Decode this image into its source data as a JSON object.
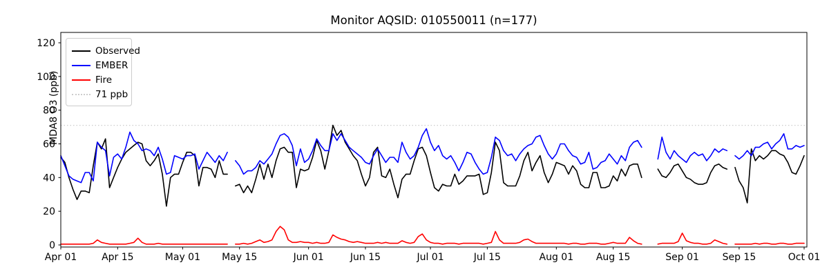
{
  "title": "Monitor AQSID: 010550011 (n=177)",
  "chart_data": {
    "type": "line",
    "title": "Monitor AQSID: 010550011 (n=177)",
    "xlabel": "",
    "ylabel": "MDA8 O3 (ppb)",
    "background": "#ffffff",
    "axis_color": "#000000",
    "grid": false,
    "legend_position": "upper-left",
    "ylim": [
      -2,
      126
    ],
    "yticks": [
      0,
      20,
      40,
      60,
      80,
      100,
      120
    ],
    "xmax": 183,
    "x_unit": "days since Apr 01",
    "xticks": [
      {
        "pos": 0,
        "label": "Apr 01"
      },
      {
        "pos": 14,
        "label": "Apr 15"
      },
      {
        "pos": 30,
        "label": "May 01"
      },
      {
        "pos": 44,
        "label": "May 15"
      },
      {
        "pos": 61,
        "label": "Jun 01"
      },
      {
        "pos": 75,
        "label": "Jun 15"
      },
      {
        "pos": 91,
        "label": "Jul 01"
      },
      {
        "pos": 105,
        "label": "Jul 15"
      },
      {
        "pos": 122,
        "label": "Aug 01"
      },
      {
        "pos": 136,
        "label": "Aug 15"
      },
      {
        "pos": 153,
        "label": "Sep 01"
      },
      {
        "pos": 167,
        "label": "Sep 15"
      },
      {
        "pos": 183,
        "label": "Oct 01"
      }
    ],
    "threshold": {
      "value": 71,
      "label": "71 ppb",
      "color": "#cccccc",
      "style": "dotted"
    },
    "series": [
      {
        "name": "Observed",
        "color": "#000000",
        "values": [
          52,
          49,
          40,
          33,
          27,
          32,
          32,
          31,
          47,
          61,
          57,
          63,
          34,
          40,
          46,
          51,
          55,
          57,
          59,
          61,
          60,
          50,
          47,
          50,
          54,
          42,
          23,
          40,
          42,
          42,
          49,
          55,
          55,
          53,
          35,
          46,
          46,
          45,
          40,
          50,
          42,
          42,
          null,
          35,
          36,
          31,
          35,
          31,
          39,
          48,
          39,
          48,
          40,
          50,
          57,
          58,
          55,
          55,
          34,
          45,
          44,
          45,
          52,
          62,
          56,
          45,
          56,
          71,
          65,
          68,
          61,
          57,
          53,
          50,
          42,
          35,
          40,
          55,
          58,
          41,
          40,
          45,
          36,
          28,
          39,
          42,
          42,
          50,
          57,
          58,
          53,
          43,
          34,
          32,
          36,
          35,
          35,
          42,
          36,
          38,
          41,
          41,
          41,
          42,
          30,
          31,
          43,
          61,
          56,
          37,
          35,
          35,
          35,
          41,
          50,
          55,
          44,
          49,
          53,
          43,
          37,
          42,
          49,
          48,
          47,
          42,
          47,
          44,
          36,
          34,
          34,
          43,
          43,
          34,
          34,
          35,
          41,
          38,
          45,
          41,
          47,
          48,
          48,
          40,
          null,
          null,
          null,
          45,
          41,
          40,
          43,
          47,
          48,
          44,
          40,
          39,
          37,
          36,
          36,
          37,
          43,
          47,
          48,
          46,
          45,
          null,
          46,
          38,
          34,
          25,
          57,
          50,
          53,
          51,
          53,
          56,
          56,
          54,
          53,
          49,
          43,
          42,
          47,
          53
        ]
      },
      {
        "name": "EMBER",
        "color": "#0000ff",
        "values": [
          53,
          47,
          41,
          39,
          38,
          37,
          43,
          43,
          38,
          61,
          58,
          56,
          41,
          52,
          54,
          51,
          58,
          67,
          62,
          60,
          56,
          57,
          56,
          53,
          58,
          51,
          42,
          43,
          53,
          52,
          51,
          53,
          53,
          54,
          45,
          50,
          55,
          52,
          49,
          53,
          50,
          55,
          null,
          50,
          47,
          42,
          44,
          44,
          46,
          50,
          48,
          51,
          54,
          60,
          65,
          66,
          64,
          59,
          47,
          57,
          49,
          51,
          56,
          63,
          59,
          56,
          56,
          66,
          62,
          66,
          62,
          58,
          56,
          54,
          52,
          49,
          48,
          53,
          57,
          53,
          49,
          52,
          52,
          49,
          61,
          55,
          51,
          53,
          58,
          65,
          69,
          61,
          56,
          59,
          53,
          51,
          53,
          49,
          44,
          49,
          55,
          54,
          49,
          45,
          42,
          43,
          52,
          64,
          62,
          56,
          53,
          54,
          50,
          54,
          57,
          59,
          60,
          64,
          65,
          59,
          54,
          51,
          54,
          60,
          60,
          56,
          53,
          52,
          48,
          49,
          55,
          45,
          46,
          49,
          50,
          54,
          51,
          48,
          53,
          50,
          58,
          61,
          62,
          58,
          null,
          null,
          null,
          51,
          64,
          55,
          51,
          56,
          53,
          51,
          49,
          53,
          55,
          53,
          54,
          50,
          53,
          57,
          55,
          57,
          56,
          null,
          53,
          51,
          53,
          56,
          53,
          58,
          58,
          60,
          61,
          57,
          60,
          62,
          66,
          57,
          57,
          59,
          58,
          59
        ]
      },
      {
        "name": "Fire",
        "color": "#ff0000",
        "values": [
          0.5,
          0.5,
          0.5,
          0.5,
          0.5,
          0.5,
          0.5,
          0.5,
          1,
          3,
          1.5,
          1,
          0.5,
          0.5,
          0.5,
          0.5,
          0.5,
          1,
          1.5,
          4,
          1.5,
          0.5,
          0.5,
          0.5,
          1,
          0.5,
          0.5,
          0.5,
          0.5,
          0.5,
          0.5,
          0.5,
          0.5,
          0.5,
          0.5,
          0.5,
          0.5,
          0.5,
          0.5,
          0.5,
          0.5,
          0.5,
          null,
          0.5,
          0.5,
          1,
          0.5,
          1,
          2,
          3,
          1.5,
          2,
          3,
          8,
          11,
          9,
          3,
          1.5,
          1.5,
          2,
          1.5,
          1.5,
          1,
          1.5,
          1,
          1,
          1.5,
          6,
          4.5,
          3.5,
          3,
          2,
          1.5,
          2,
          1.5,
          1,
          1,
          1,
          1.5,
          1,
          1.5,
          1,
          1,
          1,
          2.5,
          1.5,
          1,
          1.5,
          5,
          6.5,
          3,
          1.5,
          1,
          1,
          0.5,
          1,
          1,
          1,
          0.5,
          1,
          1,
          1,
          1,
          1,
          0.5,
          1,
          1.5,
          8,
          3,
          1,
          1,
          1,
          1,
          1.5,
          3,
          3.5,
          2,
          1,
          1,
          1,
          1,
          1,
          1,
          1,
          1,
          0.5,
          1,
          1,
          0.5,
          0.5,
          1,
          1,
          1,
          0.5,
          0.5,
          1,
          1.5,
          1,
          1,
          1,
          4.5,
          2.5,
          1,
          0.5,
          null,
          null,
          null,
          0.5,
          1,
          1,
          1,
          1,
          2,
          7,
          2.5,
          1.5,
          1,
          1,
          0.5,
          0.5,
          1,
          3,
          2,
          1,
          0.5,
          null,
          0.5,
          0.5,
          0.5,
          0.5,
          0.5,
          1,
          0.5,
          1,
          1,
          0.5,
          0.5,
          1,
          1,
          0.5,
          0.5,
          1,
          1,
          1
        ]
      }
    ]
  }
}
